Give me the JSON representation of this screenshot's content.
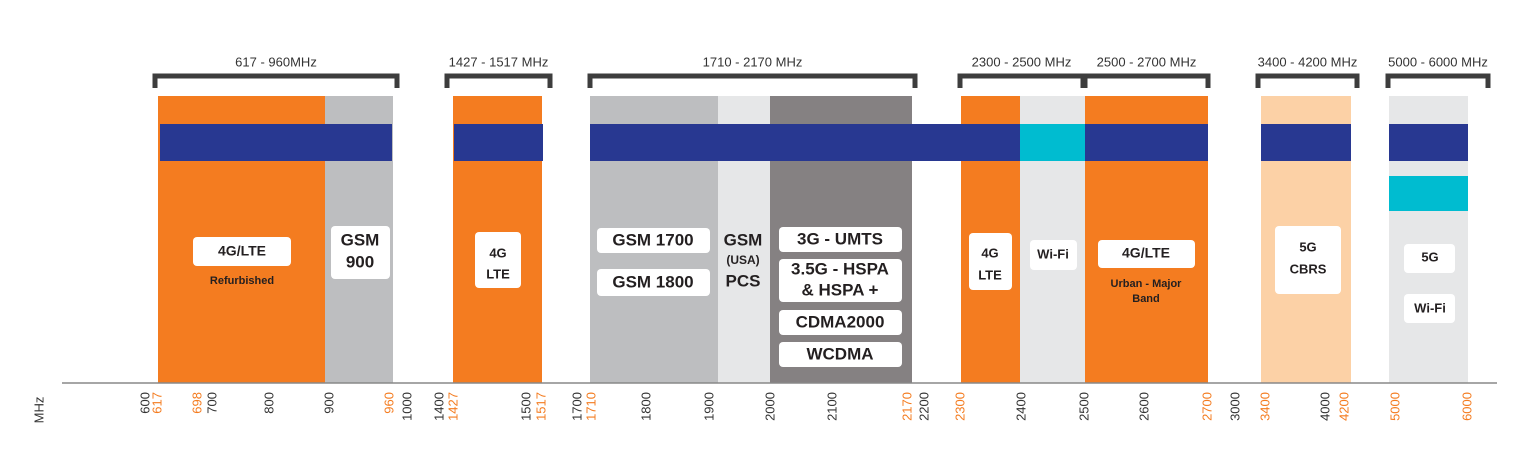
{
  "brackets": [
    "617 - 960MHz",
    "1427 - 1517 MHz",
    "1710 - 2170 MHz",
    "2300 - 2500 MHz",
    "2500 - 2700 MHz",
    "3400 - 4200 MHz",
    "5000 - 6000 MHz"
  ],
  "labels": [
    "4G/LTE",
    "Refurbished",
    "GSM",
    "900",
    "4G",
    "LTE",
    "GSM 1700",
    "GSM 1800",
    "GSM",
    "(USA)",
    "PCS",
    "3G - UMTS",
    "3.5G - HSPA",
    "& HSPA +",
    "CDMA2000",
    "WCDMA",
    "4G",
    "LTE",
    "Wi-Fi",
    "4G/LTE",
    "Urban - Major",
    "Band",
    "5G",
    "CBRS",
    "5G",
    "Wi-Fi"
  ],
  "axis": {
    "unit": "MHz",
    "ticks": [
      {
        "label": "600",
        "color": "#333333"
      },
      {
        "label": "617",
        "color": "#f47c20"
      },
      {
        "label": "698",
        "color": "#f47c20"
      },
      {
        "label": "700",
        "color": "#333333"
      },
      {
        "label": "800",
        "color": "#333333"
      },
      {
        "label": "900",
        "color": "#333333"
      },
      {
        "label": "960",
        "color": "#f47c20"
      },
      {
        "label": "1000",
        "color": "#333333"
      },
      {
        "label": "1400",
        "color": "#333333"
      },
      {
        "label": "1427",
        "color": "#f47c20"
      },
      {
        "label": "1500",
        "color": "#333333"
      },
      {
        "label": "1517",
        "color": "#f47c20"
      },
      {
        "label": "1700",
        "color": "#333333"
      },
      {
        "label": "1710",
        "color": "#f47c20"
      },
      {
        "label": "1800",
        "color": "#333333"
      },
      {
        "label": "1900",
        "color": "#333333"
      },
      {
        "label": "2000",
        "color": "#333333"
      },
      {
        "label": "2100",
        "color": "#333333"
      },
      {
        "label": "2170",
        "color": "#f47c20"
      },
      {
        "label": "2200",
        "color": "#333333"
      },
      {
        "label": "2300",
        "color": "#f47c20"
      },
      {
        "label": "2400",
        "color": "#333333"
      },
      {
        "label": "2500",
        "color": "#333333"
      },
      {
        "label": "2600",
        "color": "#333333"
      },
      {
        "label": "2700",
        "color": "#f47c20"
      },
      {
        "label": "3000",
        "color": "#333333"
      },
      {
        "label": "3400",
        "color": "#f47c20"
      },
      {
        "label": "4000",
        "color": "#333333"
      },
      {
        "label": "4200",
        "color": "#f47c20"
      },
      {
        "label": "5000",
        "color": "#f47c20"
      },
      {
        "label": "6000",
        "color": "#f47c20"
      }
    ]
  }
}
